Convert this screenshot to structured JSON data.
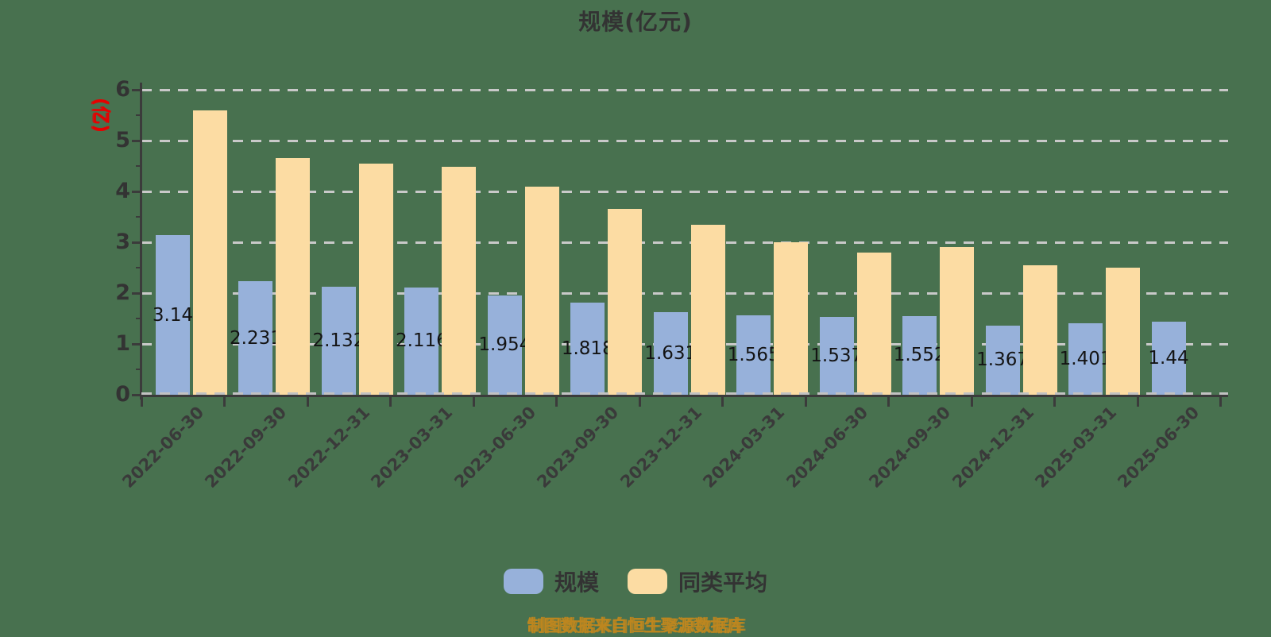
{
  "page": {
    "background_color": "#48714f"
  },
  "header": {
    "title": "规模(亿元)"
  },
  "y_axis": {
    "unit_label": "(亿)",
    "unit_label_color": "#e60000",
    "tick_labels": [
      "0",
      "1",
      "2",
      "3",
      "4",
      "5",
      "6"
    ]
  },
  "legend": [
    {
      "label": "规模",
      "color": "#97b1da"
    },
    {
      "label": "同类平均",
      "color": "#fcdca3"
    }
  ],
  "footer": {
    "source_caption": "制图数据来自恒生聚源数据库",
    "caption_color": "#bd861f"
  },
  "chart_data": {
    "type": "bar",
    "title": "规模(亿元)",
    "categories": [
      "2022-06-30",
      "2022-09-30",
      "2022-12-31",
      "2023-03-31",
      "2023-06-30",
      "2023-09-30",
      "2023-12-31",
      "2024-03-31",
      "2024-06-30",
      "2024-09-30",
      "2024-12-31",
      "2025-03-31",
      "2025-06-30"
    ],
    "series": [
      {
        "name": "规模",
        "color": "#97b1da",
        "values": [
          3.14,
          2.231,
          2.132,
          2.116,
          1.954,
          1.818,
          1.631,
          1.565,
          1.537,
          1.552,
          1.367,
          1.401,
          1.44
        ],
        "data_labels": [
          "3.14",
          "2.231",
          "2.132",
          "2.116",
          "1.954",
          "1.818",
          "1.631",
          "1.565",
          "1.537",
          "1.552",
          "1.367",
          "1.401",
          "1.44"
        ]
      },
      {
        "name": "同类平均",
        "color": "#fcdca3",
        "values": [
          5.6,
          4.65,
          4.55,
          4.48,
          4.1,
          3.65,
          3.35,
          3.0,
          2.8,
          2.9,
          2.55,
          2.5,
          null
        ],
        "data_labels": null
      }
    ],
    "ylabel": "(亿)",
    "ylim": [
      0,
      6
    ],
    "y_ticks": [
      0,
      1,
      2,
      3,
      4,
      5,
      6
    ],
    "grid": "horizontal-dashed",
    "legend_position": "bottom"
  }
}
